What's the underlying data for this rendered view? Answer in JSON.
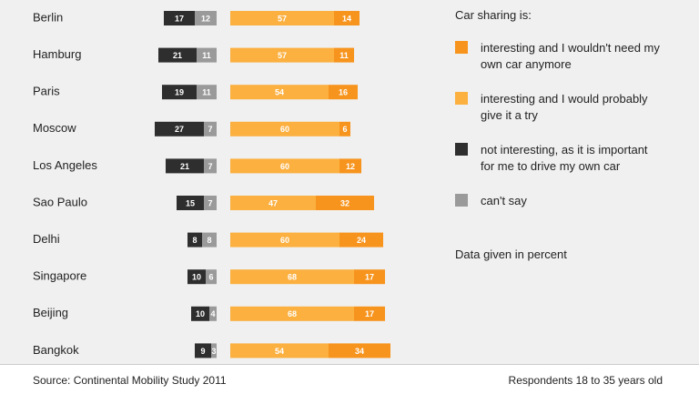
{
  "chart_data": {
    "type": "diverging-bar",
    "categories": [
      "Berlin",
      "Hamburg",
      "Paris",
      "Moscow",
      "Los Angeles",
      "Sao Paulo",
      "Delhi",
      "Singapore",
      "Beijing",
      "Bangkok"
    ],
    "legend_title": "Car sharing is:",
    "series": [
      {
        "name": "can't say",
        "color": "#9a9a9a",
        "side": "left",
        "values": [
          12,
          11,
          11,
          7,
          7,
          7,
          8,
          6,
          4,
          3
        ]
      },
      {
        "name": "not interesting, as it is important for me to drive my own car",
        "color": "#2e2e2e",
        "side": "left",
        "values": [
          17,
          21,
          19,
          27,
          21,
          15,
          8,
          10,
          10,
          9
        ]
      },
      {
        "name": "interesting and I would probably give it a try",
        "color": "#fbb040",
        "side": "right",
        "values": [
          57,
          57,
          54,
          60,
          60,
          47,
          60,
          68,
          68,
          54
        ]
      },
      {
        "name": "interesting and I wouldn't need my own car anymore",
        "color": "#f7941d",
        "side": "right",
        "values": [
          14,
          11,
          16,
          6,
          12,
          32,
          24,
          17,
          17,
          34
        ]
      }
    ],
    "note": "Data given in percent",
    "source": "Source: Continental Mobility Study 2011",
    "footnote": "Respondents 18 to 35 years old"
  }
}
